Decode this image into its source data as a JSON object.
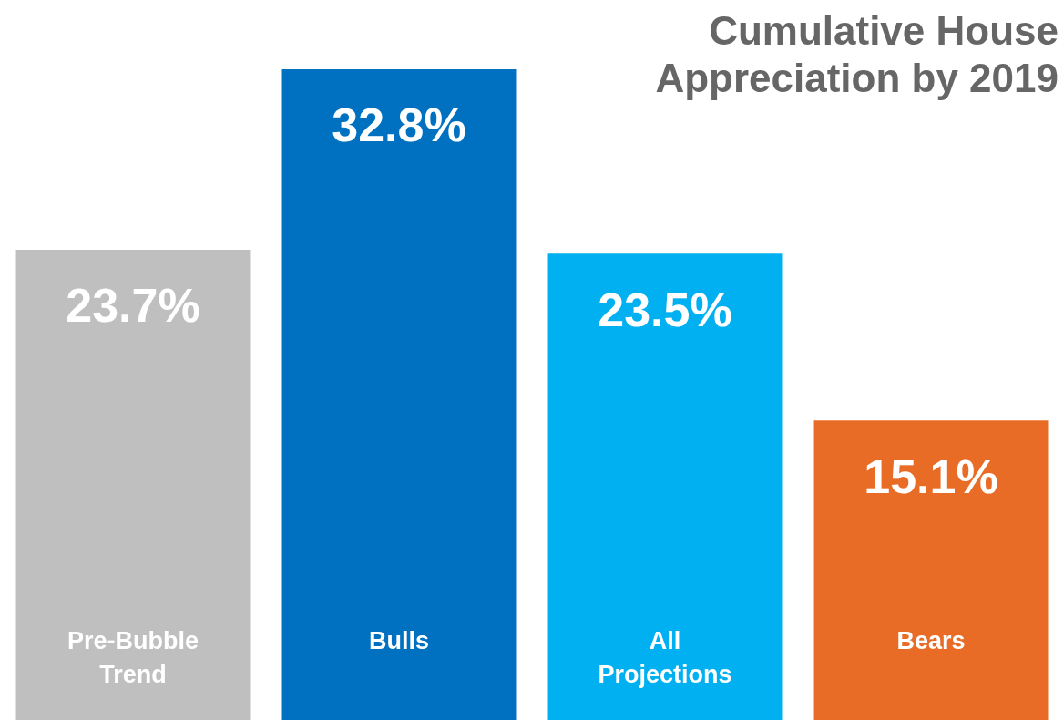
{
  "chart_data": {
    "type": "bar",
    "title": "Cumulative House Appreciation by 2019",
    "categories": [
      "Pre-Bubble Trend",
      "Bulls",
      "All Projections",
      "Bears"
    ],
    "values": [
      23.7,
      32.8,
      23.5,
      15.1
    ],
    "colors": [
      "#bfbfbf",
      "#0070c0",
      "#00b0f0",
      "#e86c25"
    ],
    "value_labels": [
      "23.7%",
      "32.8%",
      "23.5%",
      "15.1%"
    ],
    "legend": false
  }
}
